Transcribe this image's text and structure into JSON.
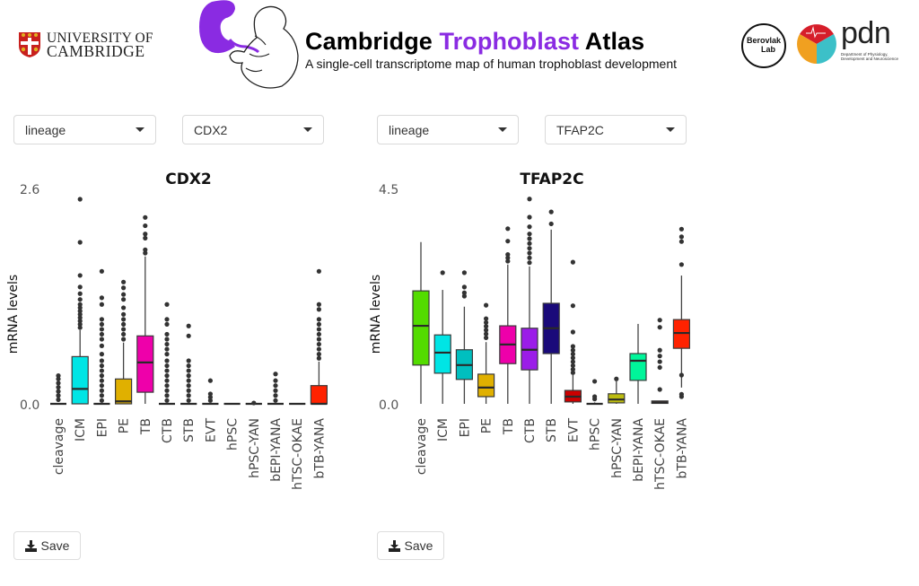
{
  "header": {
    "university_logo_text_line1": "UNIVERSITY OF",
    "university_logo_text_line2": "CAMBRIDGE",
    "title_part1": "Cambridge",
    "title_accent": "Trophoblast",
    "title_part2": "Atlas",
    "subtitle": "A single-cell transcriptome map of human trophoblast development",
    "lab_logo_line1": "Berovlak",
    "lab_logo_line2": "Lab",
    "pdn_logo": "pdn",
    "pdn_subtext": "Department of Physiology, Development and Neuroscience",
    "accent_color": "#8a2be2"
  },
  "panels": [
    {
      "group_select": {
        "value": "lineage"
      },
      "gene_select": {
        "value": "CDX2"
      },
      "save_label": "Save"
    },
    {
      "group_select": {
        "value": "lineage"
      },
      "gene_select": {
        "value": "TFAP2C"
      },
      "save_label": "Save"
    }
  ],
  "chart_data": [
    {
      "type": "box",
      "title": "CDX2",
      "xlabel": "",
      "ylabel": "mRNA levels",
      "ylim": [
        0.0,
        2.6
      ],
      "yticks": [
        "0.0",
        "2.6"
      ],
      "grid": false,
      "categories": [
        "cleavage",
        "ICM",
        "EPI",
        "PE",
        "TB",
        "CTB",
        "STB",
        "EVT",
        "hPSC",
        "hPSC-YAN",
        "bEPI-YANA",
        "hTSC-OKAE",
        "bTB-YANA"
      ],
      "colors": [
        "#53dc00",
        "#00e5e5",
        "#00bfbf",
        "#e0b000",
        "#ee00aa",
        "#9b1de8",
        "#1a0a7a",
        "#cc0000",
        "#555555",
        "#bcbc10",
        "#00f59a",
        "#8b2a1a",
        "#ff2200"
      ],
      "boxes": [
        {
          "q1": 0,
          "median": 0,
          "q3": 0,
          "whislo": 0,
          "whishi": 0,
          "outliers": [
            0.05,
            0.1,
            0.15,
            0.2,
            0.25,
            0.3,
            0.34
          ]
        },
        {
          "q1": 0,
          "median": 0.18,
          "q3": 0.57,
          "whislo": 0,
          "whishi": 0.89,
          "outliers": [
            0.92,
            0.96,
            1.0,
            1.04,
            1.08,
            1.12,
            1.16,
            1.2,
            1.26,
            1.33,
            1.41,
            1.55,
            1.95,
            2.47
          ]
        },
        {
          "q1": 0,
          "median": 0,
          "q3": 0,
          "whislo": 0,
          "whishi": 0,
          "outliers": [
            0.04,
            0.1,
            0.16,
            0.22,
            0.28,
            0.34,
            0.4,
            0.46,
            0.52,
            0.6,
            0.7,
            0.78,
            0.84,
            0.9,
            0.96,
            1.02,
            1.2,
            1.28,
            1.6
          ]
        },
        {
          "q1": 0,
          "median": 0.03,
          "q3": 0.3,
          "whislo": 0,
          "whishi": 0.74,
          "outliers": [
            0.78,
            0.84,
            0.9,
            0.96,
            1.02,
            1.08,
            1.16,
            1.26,
            1.32,
            1.4,
            1.47
          ]
        },
        {
          "q1": 0.14,
          "median": 0.5,
          "q3": 0.82,
          "whislo": 0,
          "whishi": 1.78,
          "outliers": [
            1.82,
            1.86,
            2.0,
            2.05,
            2.15,
            2.25
          ]
        },
        {
          "q1": 0,
          "median": 0,
          "q3": 0,
          "whislo": 0,
          "whishi": 0,
          "outliers": [
            0.04,
            0.1,
            0.16,
            0.22,
            0.28,
            0.34,
            0.4,
            0.46,
            0.52,
            0.6,
            0.66,
            0.72,
            0.78,
            0.84,
            0.96,
            1.02,
            1.2
          ]
        },
        {
          "q1": 0,
          "median": 0,
          "q3": 0,
          "whislo": 0,
          "whishi": 0,
          "outliers": [
            0.04,
            0.1,
            0.16,
            0.22,
            0.28,
            0.34,
            0.4,
            0.46,
            0.52,
            0.82,
            0.94
          ]
        },
        {
          "q1": 0,
          "median": 0,
          "q3": 0,
          "whislo": 0,
          "whishi": 0,
          "outliers": [
            0.04,
            0.08,
            0.12,
            0.28
          ]
        },
        {
          "q1": 0,
          "median": 0,
          "q3": 0,
          "whislo": 0,
          "whishi": 0,
          "outliers": []
        },
        {
          "q1": 0,
          "median": 0,
          "q3": 0,
          "whislo": 0,
          "whishi": 0,
          "outliers": [
            0.01
          ]
        },
        {
          "q1": 0,
          "median": 0,
          "q3": 0,
          "whislo": 0,
          "whishi": 0,
          "outliers": [
            0.04,
            0.1,
            0.16,
            0.22,
            0.28,
            0.36
          ]
        },
        {
          "q1": 0,
          "median": 0,
          "q3": 0,
          "whislo": 0,
          "whishi": 0,
          "outliers": []
        },
        {
          "q1": 0,
          "median": 0,
          "q3": 0.22,
          "whislo": 0,
          "whishi": 0.51,
          "outliers": [
            0.55,
            0.6,
            0.66,
            0.72,
            0.78,
            0.84,
            0.9,
            0.96,
            1.02,
            1.14,
            1.2,
            1.6
          ]
        }
      ]
    },
    {
      "type": "box",
      "title": "TFAP2C",
      "xlabel": "",
      "ylabel": "mRNA levels",
      "ylim": [
        0.0,
        4.5
      ],
      "yticks": [
        "0.0",
        "4.5"
      ],
      "grid": false,
      "categories": [
        "cleavage",
        "ICM",
        "EPI",
        "PE",
        "TB",
        "CTB",
        "STB",
        "EVT",
        "hPSC",
        "hPSC-YAN",
        "bEPI-YANA",
        "hTSC-OKAE",
        "bTB-YANA"
      ],
      "colors": [
        "#53dc00",
        "#00e5e5",
        "#00bfbf",
        "#e0b000",
        "#ee00aa",
        "#9b1de8",
        "#1a0a7a",
        "#cc0000",
        "#555555",
        "#bcbc10",
        "#00f59a",
        "#8b2a1a",
        "#ff2200"
      ],
      "boxes": [
        {
          "q1": 0.81,
          "median": 1.63,
          "q3": 2.36,
          "whislo": 0,
          "whishi": 3.38,
          "outliers": []
        },
        {
          "q1": 0.64,
          "median": 1.07,
          "q3": 1.44,
          "whislo": 0,
          "whishi": 2.38,
          "outliers": [
            2.74
          ]
        },
        {
          "q1": 0.51,
          "median": 0.81,
          "q3": 1.13,
          "whislo": 0,
          "whishi": 2.03,
          "outliers": [
            2.25,
            2.32,
            2.44,
            2.74
          ]
        },
        {
          "q1": 0.15,
          "median": 0.34,
          "q3": 0.62,
          "whislo": 0,
          "whishi": 1.29,
          "outliers": [
            1.38,
            1.46,
            1.54,
            1.62,
            1.7,
            1.78,
            2.06
          ]
        },
        {
          "q1": 0.84,
          "median": 1.24,
          "q3": 1.63,
          "whislo": 0,
          "whishi": 2.91,
          "outliers": [
            2.98,
            3.05,
            3.12,
            3.4,
            3.66
          ]
        },
        {
          "q1": 0.71,
          "median": 1.13,
          "q3": 1.58,
          "whislo": 0,
          "whishi": 2.87,
          "outliers": [
            2.95,
            3.05,
            3.15,
            3.25,
            3.35,
            3.45,
            3.55,
            3.7,
            3.9,
            4.28
          ]
        },
        {
          "q1": 1.05,
          "median": 1.58,
          "q3": 2.1,
          "whislo": 0,
          "whishi": 3.64,
          "outliers": [
            3.76,
            4.01
          ]
        },
        {
          "q1": 0.04,
          "median": 0.15,
          "q3": 0.28,
          "whislo": 0,
          "whishi": 0.6,
          "outliers": [
            0.65,
            0.72,
            0.8,
            0.88,
            0.96,
            1.04,
            1.12,
            1.2,
            1.5,
            2.05,
            2.96
          ]
        },
        {
          "q1": 0,
          "median": 0,
          "q3": 0.01,
          "whislo": 0,
          "whishi": 0.03,
          "outliers": [
            0.1,
            0.15,
            0.47
          ]
        },
        {
          "q1": 0.02,
          "median": 0.09,
          "q3": 0.21,
          "whislo": 0,
          "whishi": 0.47,
          "outliers": [
            0.52
          ]
        },
        {
          "q1": 0.49,
          "median": 0.9,
          "q3": 1.05,
          "whislo": 0,
          "whishi": 1.67,
          "outliers": []
        },
        {
          "q1": 0.01,
          "median": 0.03,
          "q3": 0.06,
          "whislo": 0,
          "whishi": 0.06,
          "outliers": [
            0.3,
            0.76,
            0.88,
            1.0,
            1.12,
            1.6,
            1.75
          ]
        },
        {
          "q1": 1.16,
          "median": 1.48,
          "q3": 1.76,
          "whislo": 0.34,
          "whishi": 2.68,
          "outliers": [
            0.15,
            0.2,
            0.6,
            2.91,
            3.39,
            3.49,
            3.65
          ]
        }
      ]
    }
  ]
}
